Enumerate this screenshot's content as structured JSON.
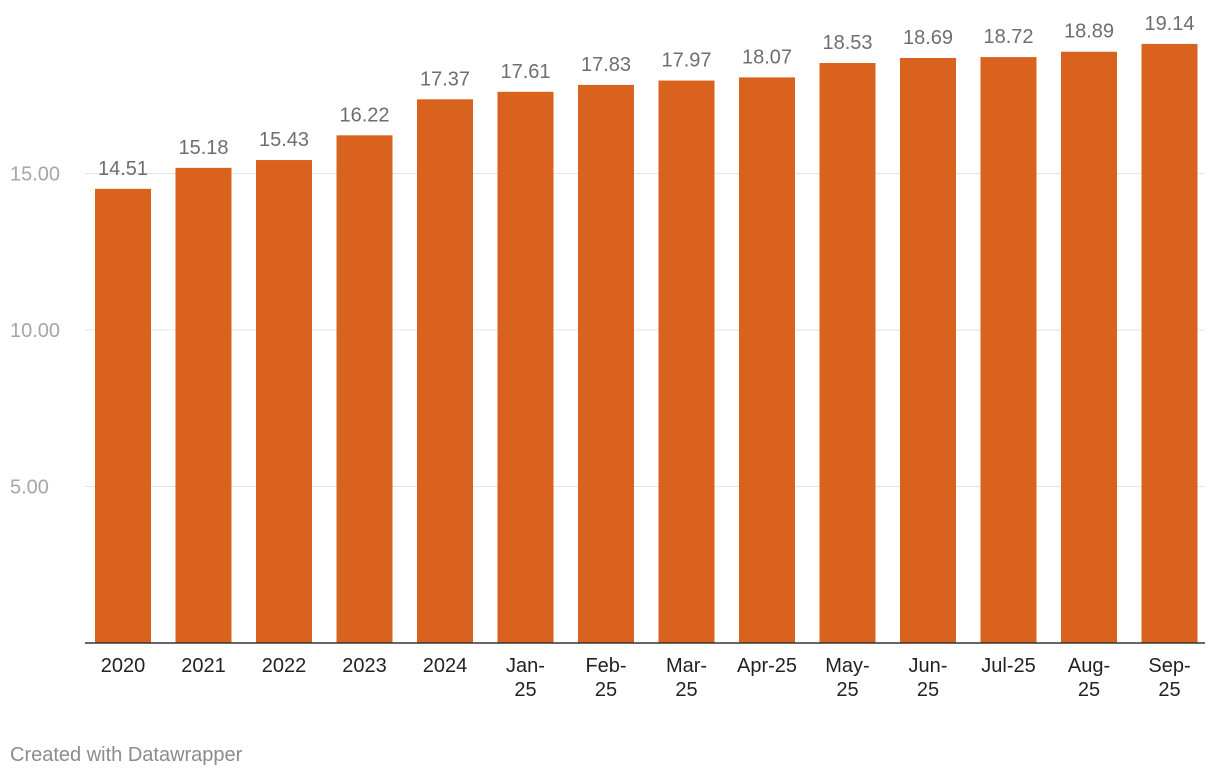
{
  "chart_data": {
    "type": "bar",
    "title": "",
    "xlabel": "",
    "ylabel": "",
    "categories": [
      [
        "2020"
      ],
      [
        "2021"
      ],
      [
        "2022"
      ],
      [
        "2023"
      ],
      [
        "2024"
      ],
      [
        "Jan-",
        "25"
      ],
      [
        "Feb-",
        "25"
      ],
      [
        "Mar-",
        "25"
      ],
      [
        "Apr-25"
      ],
      [
        "May-",
        "25"
      ],
      [
        "Jun-",
        "25"
      ],
      [
        "Jul-25"
      ],
      [
        "Aug-",
        "25"
      ],
      [
        "Sep-",
        "25"
      ]
    ],
    "values": [
      14.51,
      15.18,
      15.43,
      16.22,
      17.37,
      17.61,
      17.83,
      17.97,
      18.07,
      18.53,
      18.69,
      18.72,
      18.89,
      19.14
    ],
    "value_labels": [
      "14.51",
      "15.18",
      "15.43",
      "16.22",
      "17.37",
      "17.61",
      "17.83",
      "17.97",
      "18.07",
      "18.53",
      "18.69",
      "18.72",
      "18.89",
      "19.14"
    ],
    "yticks": [
      5,
      10,
      15
    ],
    "ytick_labels": [
      "5.00",
      "10.00",
      "15.00"
    ],
    "ylim": [
      0,
      20
    ],
    "grid": true,
    "colors": {
      "bar": "#d9621f",
      "value_label": "#6e6e6e",
      "tick_label": "#a6a6a6",
      "category_label": "#222222",
      "grid": "#e3e3e3",
      "baseline": "#333333"
    }
  },
  "footer": {
    "credit": "Created with Datawrapper"
  }
}
